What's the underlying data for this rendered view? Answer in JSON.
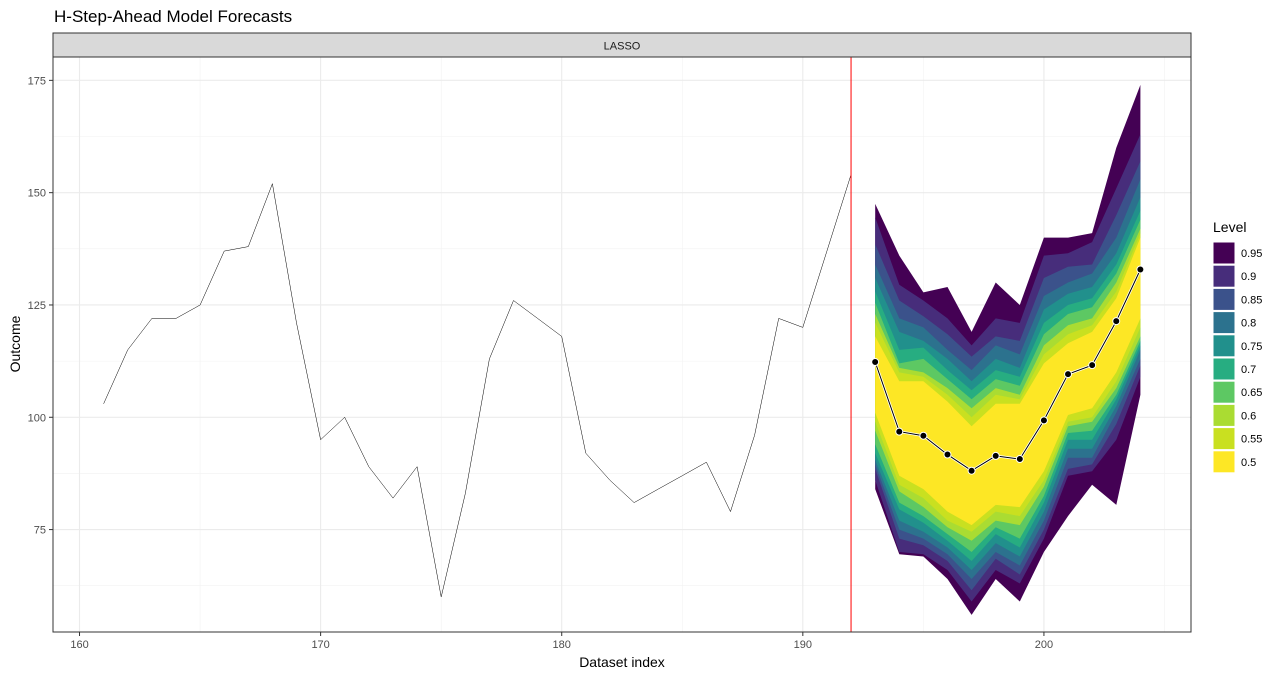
{
  "chart_data": {
    "type": "area",
    "title": "H-Step-Ahead Model Forecasts",
    "facet_label": "LASSO",
    "xlabel": "Dataset index",
    "ylabel": "Outcome",
    "xlim": [
      158.9,
      206.1
    ],
    "ylim": [
      52.2,
      180.2
    ],
    "x_ticks": [
      160,
      170,
      180,
      190,
      200
    ],
    "y_ticks": [
      75,
      100,
      125,
      150,
      175
    ],
    "grid": true,
    "history": {
      "x": [
        161,
        162,
        163,
        164,
        165,
        166,
        167,
        168,
        169,
        170,
        171,
        172,
        173,
        174,
        175,
        176,
        177,
        178,
        179,
        180,
        181,
        182,
        183,
        184,
        185,
        186,
        187,
        188,
        189,
        190,
        191,
        192
      ],
      "y": [
        103,
        115,
        122,
        122,
        125,
        137,
        138,
        152,
        121,
        95,
        100,
        89,
        82,
        89,
        60,
        83,
        113,
        126,
        122,
        118,
        92,
        86,
        81,
        84,
        87,
        90,
        79,
        96,
        122,
        120,
        137,
        154
      ]
    },
    "forecast_origin": 192,
    "forecast": {
      "x": [
        193,
        194,
        195,
        196,
        197,
        198,
        199,
        200,
        201,
        202,
        203,
        204
      ],
      "y": [
        112.3,
        96.8,
        95.9,
        91.7,
        88.1,
        91.4,
        90.7,
        99.3,
        109.6,
        111.6,
        121.4,
        132.9
      ]
    },
    "intervals": [
      {
        "level": "0.95",
        "color": "#440154",
        "upper": [
          147.5,
          136.0,
          127.8,
          129.0,
          119.0,
          130.0,
          125.0,
          140.0,
          140.0,
          141.0,
          160.0,
          174.0
        ],
        "lower": [
          84.0,
          69.5,
          69.0,
          64.0,
          56.0,
          64.0,
          59.0,
          70.0,
          78.0,
          85.0,
          80.5,
          105.0
        ]
      },
      {
        "level": "0.9",
        "color": "#472D7B",
        "upper": [
          144.5,
          129.5,
          126.0,
          122.0,
          116.0,
          122.0,
          121.0,
          136.0,
          136.5,
          139.0,
          151.0,
          163.0
        ],
        "lower": [
          86.0,
          70.0,
          69.5,
          66.0,
          59.0,
          66.0,
          63.0,
          73.0,
          87.0,
          88.0,
          95.0,
          109.0
        ]
      },
      {
        "level": "0.85",
        "color": "#3B528B",
        "upper": [
          138.5,
          126.0,
          122.5,
          118.5,
          113.5,
          118.0,
          117.0,
          131.0,
          133.5,
          134.0,
          145.0,
          157.0
        ],
        "lower": [
          88.5,
          73.0,
          71.5,
          68.0,
          61.5,
          68.5,
          65.0,
          75.0,
          88.5,
          89.5,
          98.5,
          111.5
        ]
      },
      {
        "level": "0.8",
        "color": "#2C728E",
        "upper": [
          134.0,
          122.0,
          120.0,
          115.0,
          110.5,
          116.0,
          114.0,
          127.0,
          130.0,
          132.0,
          140.0,
          153.0
        ],
        "lower": [
          89.5,
          75.0,
          73.0,
          69.5,
          64.0,
          70.0,
          67.0,
          77.0,
          91.0,
          91.0,
          101.0,
          113.0
        ]
      },
      {
        "level": "0.75",
        "color": "#21908C",
        "upper": [
          131.0,
          119.0,
          117.0,
          113.0,
          108.0,
          113.0,
          111.0,
          124.0,
          127.5,
          129.0,
          136.5,
          149.0
        ],
        "lower": [
          90.5,
          77.0,
          74.5,
          71.0,
          66.0,
          72.0,
          69.0,
          79.0,
          93.0,
          93.0,
          102.5,
          115.0
        ]
      },
      {
        "level": "0.7",
        "color": "#27AD81",
        "upper": [
          128.0,
          115.0,
          115.5,
          110.5,
          106.0,
          110.5,
          109.0,
          121.0,
          125.0,
          126.5,
          134.0,
          146.0
        ],
        "lower": [
          92.0,
          79.5,
          76.5,
          72.5,
          68.0,
          74.0,
          71.0,
          81.0,
          95.0,
          95.0,
          104.0,
          116.0
        ]
      },
      {
        "level": "0.65",
        "color": "#5DC863",
        "upper": [
          125.5,
          112.0,
          113.0,
          108.5,
          104.0,
          108.5,
          107.0,
          118.5,
          123.0,
          124.5,
          132.0,
          144.0
        ],
        "lower": [
          94.0,
          81.0,
          78.0,
          74.0,
          70.0,
          75.5,
          73.0,
          82.5,
          96.5,
          97.0,
          105.0,
          117.0
        ]
      },
      {
        "level": "0.6",
        "color": "#AADC32",
        "upper": [
          123.0,
          111.0,
          110.0,
          106.5,
          102.0,
          106.5,
          105.0,
          116.0,
          120.5,
          122.0,
          130.0,
          142.0
        ],
        "lower": [
          97.0,
          83.5,
          80.0,
          75.5,
          72.5,
          77.0,
          76.0,
          84.5,
          98.0,
          99.0,
          106.5,
          118.0
        ]
      },
      {
        "level": "0.55",
        "color": "#C9E020",
        "upper": [
          121.0,
          110.0,
          109.0,
          105.0,
          100.0,
          105.0,
          104.0,
          114.0,
          118.5,
          120.5,
          128.0,
          141.0
        ],
        "lower": [
          99.0,
          85.0,
          82.0,
          77.0,
          74.5,
          79.0,
          78.0,
          86.0,
          99.0,
          100.0,
          108.0,
          120.0
        ]
      },
      {
        "level": "0.5",
        "color": "#FDE725",
        "upper": [
          118.0,
          108.0,
          108.0,
          103.5,
          98.0,
          103.0,
          103.0,
          112.0,
          116.5,
          119.0,
          126.5,
          140.0
        ],
        "lower": [
          101.0,
          87.0,
          84.0,
          79.0,
          76.0,
          80.5,
          80.0,
          88.0,
          100.5,
          102.0,
          110.0,
          122.0
        ]
      }
    ],
    "legend": {
      "title": "Level",
      "position": "right",
      "levels": [
        "0.95",
        "0.9",
        "0.85",
        "0.8",
        "0.75",
        "0.7",
        "0.65",
        "0.6",
        "0.55",
        "0.5"
      ]
    }
  }
}
